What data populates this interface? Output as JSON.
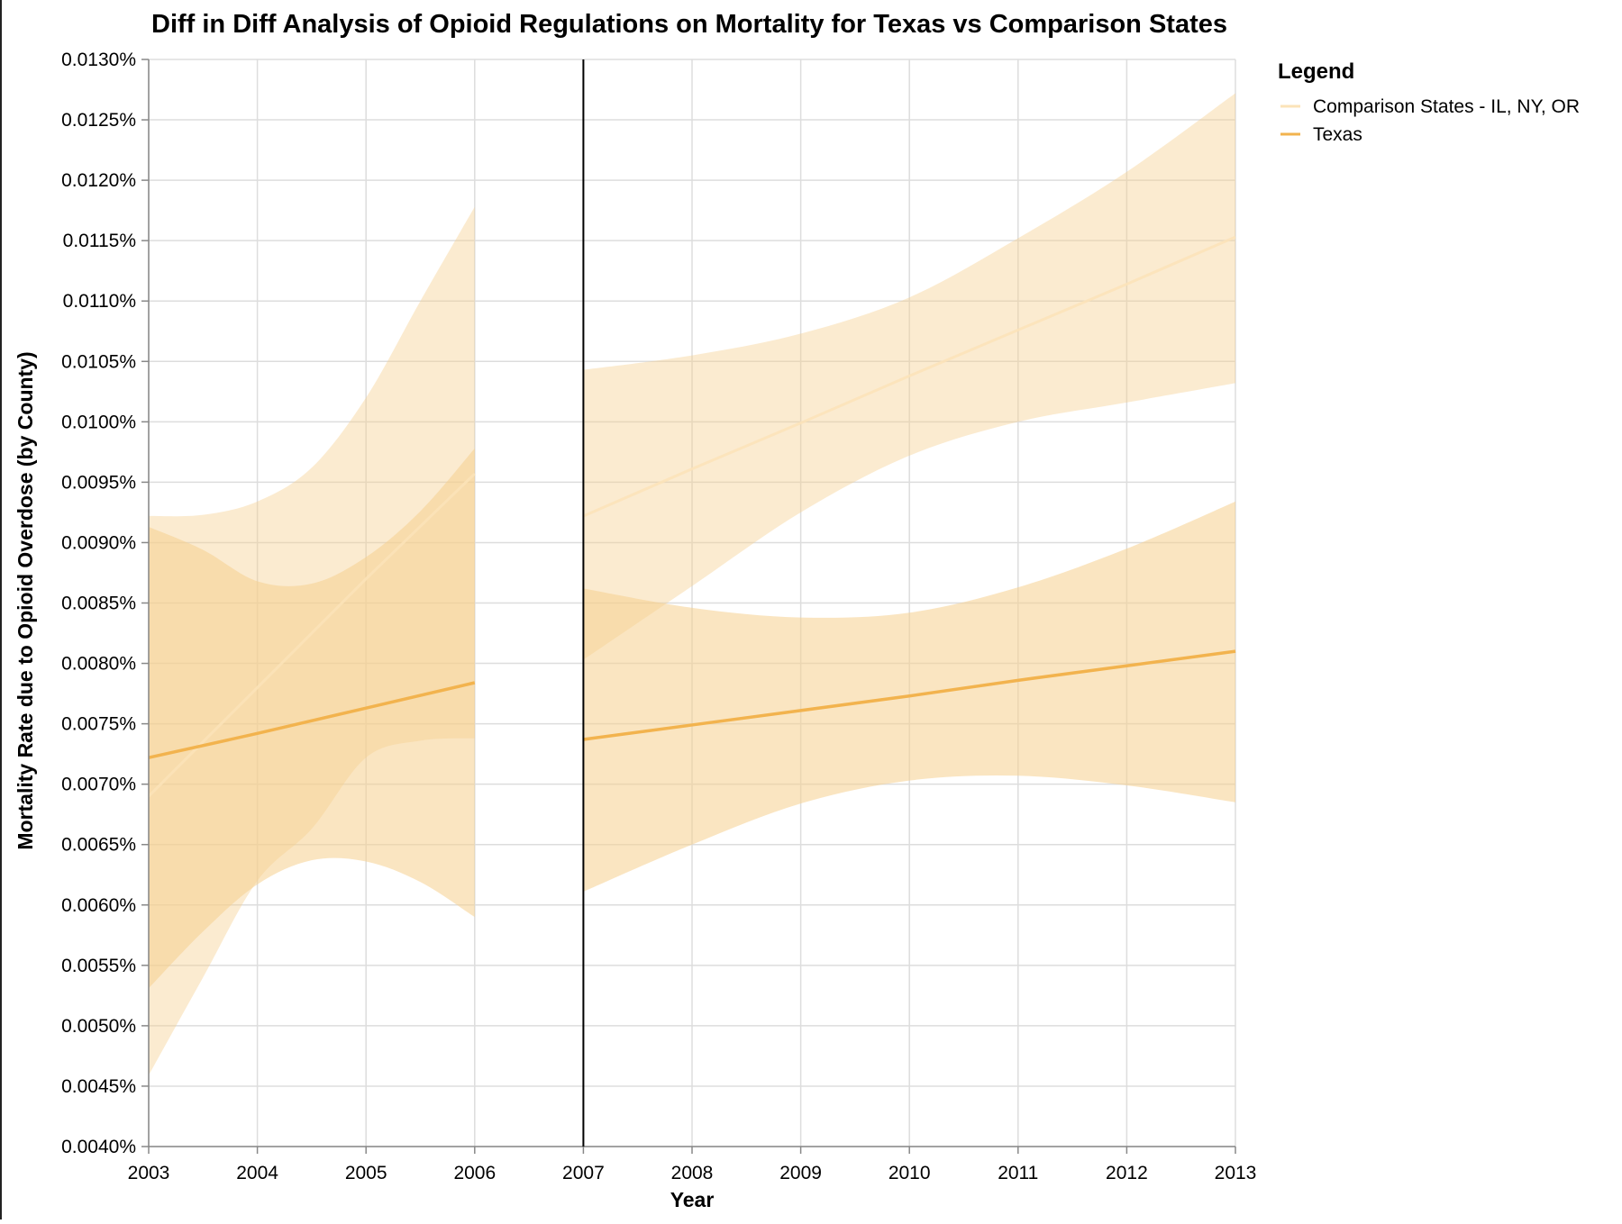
{
  "chart_data": {
    "type": "line",
    "title": "Diff in Diff Analysis of Opioid Regulations on Mortality for Texas vs Comparison States",
    "xlabel": "Year",
    "ylabel": "Mortality Rate due to Opioid Overdose (by County)",
    "xlim": [
      2003,
      2013
    ],
    "ylim": [
      0.004,
      0.013
    ],
    "x_ticks": [
      "2003",
      "2004",
      "2005",
      "2006",
      "2007",
      "2008",
      "2009",
      "2010",
      "2011",
      "2012",
      "2013"
    ],
    "y_ticks": [
      "0.0040%",
      "0.0045%",
      "0.0050%",
      "0.0055%",
      "0.0060%",
      "0.0065%",
      "0.0070%",
      "0.0075%",
      "0.0080%",
      "0.0085%",
      "0.0090%",
      "0.0095%",
      "0.0100%",
      "0.0105%",
      "0.0110%",
      "0.0115%",
      "0.0120%",
      "0.0125%",
      "0.0130%"
    ],
    "policy_year": 2007,
    "grid": true,
    "legend": {
      "title": "Legend",
      "position": "top-right"
    },
    "series": [
      {
        "name": "Comparison States - IL, NY, OR",
        "color": "#fbe3b8",
        "band_color": "#f6d08e",
        "segments": [
          {
            "x": [
              2003,
              2004,
              2005,
              2006
            ],
            "y": [
              0.0069,
              0.0078,
              0.0087,
              0.00957
            ],
            "band_x": [
              2003,
              2003.5,
              2004,
              2004.5,
              2005,
              2005.5,
              2006
            ],
            "band_lower": [
              0.00459,
              0.0054,
              0.0062,
              0.00663,
              0.00722,
              0.00736,
              0.00738
            ],
            "band_upper": [
              0.00922,
              0.00923,
              0.00934,
              0.00962,
              0.0102,
              0.011,
              0.01178
            ]
          },
          {
            "x": [
              2007,
              2008,
              2009,
              2010,
              2011,
              2012,
              2013
            ],
            "y": [
              0.00922,
              0.00961,
              0.00999,
              0.01038,
              0.01076,
              0.01114,
              0.01153
            ],
            "band_x": [
              2007,
              2008,
              2009,
              2010,
              2011,
              2012,
              2013
            ],
            "band_lower": [
              0.00803,
              0.00864,
              0.00925,
              0.00972,
              0.01,
              0.01016,
              0.01032
            ],
            "band_upper": [
              0.01043,
              0.01055,
              0.01073,
              0.01103,
              0.01152,
              0.01207,
              0.01272
            ]
          }
        ]
      },
      {
        "name": "Texas",
        "color": "#f2b34e",
        "band_color": "#f6d08e",
        "segments": [
          {
            "x": [
              2003,
              2004,
              2005,
              2006
            ],
            "y": [
              0.00722,
              0.00742,
              0.00763,
              0.00784
            ],
            "band_x": [
              2003,
              2003.5,
              2004,
              2004.5,
              2005,
              2005.5,
              2006
            ],
            "band_lower": [
              0.00531,
              0.00578,
              0.00617,
              0.00637,
              0.00636,
              0.00619,
              0.0059
            ],
            "band_upper": [
              0.00913,
              0.00894,
              0.00868,
              0.00866,
              0.00888,
              0.00926,
              0.00978
            ]
          },
          {
            "x": [
              2007,
              2008,
              2009,
              2010,
              2011,
              2012,
              2013
            ],
            "y": [
              0.00737,
              0.00749,
              0.00761,
              0.00773,
              0.00786,
              0.00798,
              0.0081
            ],
            "band_x": [
              2007,
              2008,
              2009,
              2010,
              2011,
              2012,
              2013
            ],
            "band_lower": [
              0.00611,
              0.0065,
              0.00684,
              0.00703,
              0.00707,
              0.00699,
              0.00685
            ],
            "band_upper": [
              0.00862,
              0.00846,
              0.00838,
              0.00842,
              0.00863,
              0.00895,
              0.00934
            ]
          }
        ]
      }
    ]
  }
}
